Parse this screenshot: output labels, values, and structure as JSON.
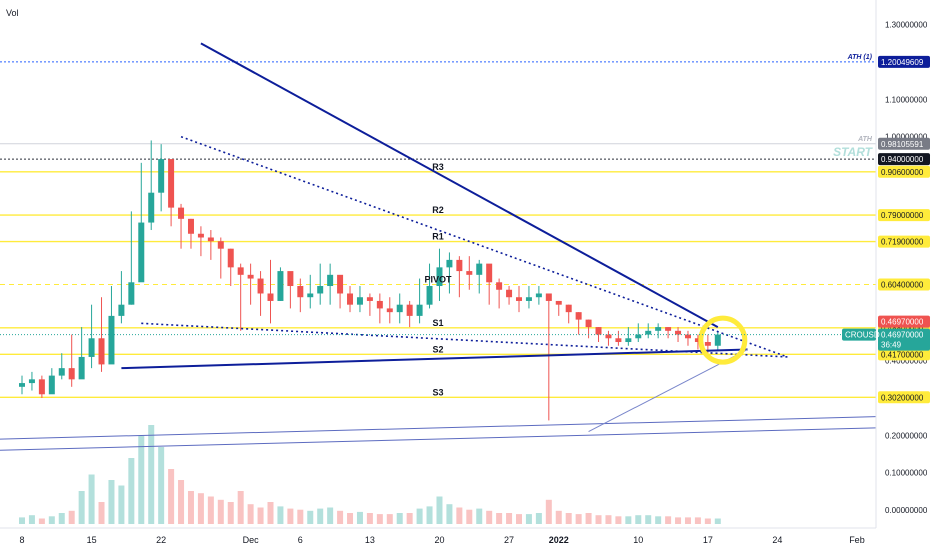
{
  "header": {
    "indicator_label": "Vol"
  },
  "price_axis": {
    "ticks": [
      {
        "value": 1.3,
        "label": "1.30000000"
      },
      {
        "value": 1.1,
        "label": "1.10000000"
      },
      {
        "value": 1.0,
        "label": "1.00000000"
      },
      {
        "value": 0.5,
        "label": "0.50000000"
      },
      {
        "value": 0.4,
        "label": "0.40000000"
      },
      {
        "value": 0.2,
        "label": "0.20000000"
      },
      {
        "value": 0.1,
        "label": "0.10000000"
      },
      {
        "value": 0.0,
        "label": "0.00000000"
      }
    ]
  },
  "time_axis": {
    "labels": [
      {
        "t": 0,
        "label": "8"
      },
      {
        "t": 7,
        "label": "15"
      },
      {
        "t": 14,
        "label": "22"
      },
      {
        "t": 23,
        "label": "Dec"
      },
      {
        "t": 28,
        "label": "6"
      },
      {
        "t": 35,
        "label": "13"
      },
      {
        "t": 42,
        "label": "20"
      },
      {
        "t": 49,
        "label": "27"
      },
      {
        "t": 54,
        "label": "2022"
      },
      {
        "t": 62,
        "label": "10"
      },
      {
        "t": 69,
        "label": "17"
      },
      {
        "t": 76,
        "label": "24"
      },
      {
        "t": 84,
        "label": "Feb"
      }
    ]
  },
  "levels": [
    {
      "id": "ath1",
      "value": 1.20049609,
      "price_label": "1.20049609",
      "name": "ATH (1)",
      "style": "dotted",
      "color": "#2962ff",
      "badge_color": "#0d1e9a"
    },
    {
      "id": "ath",
      "value": 0.98105591,
      "price_label": "0.98105591",
      "name": "ATH",
      "style": "solid",
      "color": "#d1d4dc",
      "badge_color": "#787b86"
    },
    {
      "id": "start",
      "value": 0.94,
      "price_label": "0.94000000",
      "name": "START",
      "style": "dotted",
      "color": "#2a2e39",
      "badge_color": "#131722"
    },
    {
      "id": "r3",
      "value": 0.906,
      "price_label": "0.90600000",
      "name": "R3",
      "style": "solid",
      "color": "#ffeb3b",
      "badge_color": "#ffeb3b"
    },
    {
      "id": "r2",
      "value": 0.79,
      "price_label": "0.79000000",
      "name": "R2",
      "style": "solid",
      "color": "#ffeb3b",
      "badge_color": "#ffeb3b"
    },
    {
      "id": "r1",
      "value": 0.719,
      "price_label": "0.71900000",
      "name": "R1",
      "style": "solid",
      "color": "#ffeb3b",
      "badge_color": "#ffeb3b"
    },
    {
      "id": "pivot",
      "value": 0.604,
      "price_label": "0.60400000",
      "name": "PIVOT",
      "style": "dashed",
      "color": "#ffeb3b",
      "badge_color": "#ffeb3b"
    },
    {
      "id": "s1",
      "value": 0.488,
      "price_label": "0.48800000",
      "name": "S1",
      "style": "solid",
      "color": "#ffeb3b",
      "badge_color": "#ffeb3b"
    },
    {
      "id": "s2",
      "value": 0.417,
      "price_label": "0.41700000",
      "name": "S2",
      "style": "solid",
      "color": "#ffeb3b",
      "badge_color": "#ffeb3b"
    },
    {
      "id": "s3",
      "value": 0.302,
      "price_label": "0.30200000",
      "name": "S3",
      "style": "solid",
      "color": "#ffeb3b",
      "badge_color": "#ffeb3b"
    }
  ],
  "last_price": {
    "symbol": "CROUSD",
    "price_label": "0.46970000",
    "price": 0.4697,
    "countdown": "36:49",
    "badge_color": "#26a69a",
    "alert_color": "#ef5350"
  },
  "colors": {
    "up": "#26a69a",
    "down": "#ef5350",
    "trend": "#0d1e9a",
    "highlight": "#ffeb3b"
  },
  "chart_data": {
    "type": "candlestick",
    "x_unit": "days since 8 Nov 2021",
    "close": [
      0.34,
      0.35,
      0.31,
      0.36,
      0.38,
      0.35,
      0.41,
      0.46,
      0.39,
      0.52,
      0.55,
      0.61,
      0.77,
      0.85,
      0.94,
      0.81,
      0.78,
      0.74,
      0.73,
      0.72,
      0.7,
      0.65,
      0.63,
      0.62,
      0.58,
      0.56,
      0.64,
      0.6,
      0.57,
      0.58,
      0.6,
      0.63,
      0.58,
      0.55,
      0.57,
      0.56,
      0.54,
      0.53,
      0.55,
      0.52,
      0.55,
      0.6,
      0.65,
      0.67,
      0.64,
      0.63,
      0.66,
      0.61,
      0.59,
      0.57,
      0.56,
      0.57,
      0.58,
      0.56,
      0.55,
      0.53,
      0.51,
      0.49,
      0.47,
      0.46,
      0.45,
      0.46,
      0.47,
      0.48,
      0.49,
      0.48,
      0.47,
      0.46,
      0.45,
      0.44,
      0.47
    ],
    "low": [
      0.31,
      0.32,
      0.3,
      0.32,
      0.35,
      0.33,
      0.37,
      0.38,
      0.37,
      0.45,
      0.5,
      0.55,
      0.68,
      0.75,
      0.8,
      0.76,
      0.7,
      0.7,
      0.68,
      0.67,
      0.62,
      0.6,
      0.48,
      0.55,
      0.52,
      0.5,
      0.56,
      0.54,
      0.53,
      0.54,
      0.55,
      0.55,
      0.54,
      0.53,
      0.53,
      0.52,
      0.5,
      0.5,
      0.5,
      0.49,
      0.5,
      0.54,
      0.56,
      0.58,
      0.57,
      0.59,
      0.58,
      0.55,
      0.54,
      0.55,
      0.53,
      0.54,
      0.55,
      0.24,
      0.52,
      0.5,
      0.47,
      0.46,
      0.45,
      0.44,
      0.44,
      0.44,
      0.45,
      0.46,
      0.46,
      0.46,
      0.45,
      0.44,
      0.43,
      0.42,
      0.43
    ],
    "high": [
      0.36,
      0.37,
      0.36,
      0.38,
      0.42,
      0.47,
      0.49,
      0.55,
      0.57,
      0.6,
      0.64,
      0.8,
      0.93,
      0.99,
      0.98,
      0.9,
      0.82,
      0.78,
      0.76,
      0.75,
      0.73,
      0.7,
      0.66,
      0.66,
      0.64,
      0.67,
      0.65,
      0.63,
      0.62,
      0.63,
      0.66,
      0.66,
      0.62,
      0.6,
      0.6,
      0.58,
      0.58,
      0.57,
      0.58,
      0.56,
      0.62,
      0.66,
      0.7,
      0.69,
      0.68,
      0.68,
      0.67,
      0.64,
      0.62,
      0.6,
      0.6,
      0.6,
      0.6,
      0.58,
      0.56,
      0.55,
      0.53,
      0.51,
      0.49,
      0.48,
      0.48,
      0.49,
      0.5,
      0.5,
      0.5,
      0.49,
      0.49,
      0.48,
      0.47,
      0.47,
      0.48
    ],
    "volume": [
      0.06,
      0.08,
      0.05,
      0.07,
      0.1,
      0.12,
      0.3,
      0.45,
      0.2,
      0.4,
      0.35,
      0.6,
      0.8,
      0.9,
      0.7,
      0.5,
      0.4,
      0.3,
      0.28,
      0.25,
      0.22,
      0.2,
      0.3,
      0.18,
      0.15,
      0.2,
      0.16,
      0.14,
      0.13,
      0.12,
      0.14,
      0.15,
      0.12,
      0.1,
      0.11,
      0.1,
      0.09,
      0.09,
      0.1,
      0.1,
      0.14,
      0.16,
      0.25,
      0.18,
      0.15,
      0.13,
      0.14,
      0.12,
      0.1,
      0.1,
      0.09,
      0.09,
      0.1,
      0.22,
      0.12,
      0.1,
      0.09,
      0.1,
      0.08,
      0.08,
      0.07,
      0.07,
      0.08,
      0.08,
      0.07,
      0.07,
      0.06,
      0.06,
      0.06,
      0.05,
      0.05
    ],
    "trendlines": [
      {
        "t0": 18,
        "v0": 1.25,
        "t1": 70,
        "v1": 0.49,
        "style": "solid"
      },
      {
        "t0": 16,
        "v0": 1.0,
        "t1": 77,
        "v1": 0.41,
        "style": "dotted"
      },
      {
        "t0": 12,
        "v0": 0.5,
        "t1": 77,
        "v1": 0.41,
        "style": "dotted"
      },
      {
        "t0": 10,
        "v0": 0.38,
        "t1": 73,
        "v1": 0.43,
        "style": "solid"
      },
      {
        "t0": 57,
        "v0": 0.21,
        "t1": 73,
        "v1": 0.43,
        "style": "thin"
      }
    ],
    "channel_lines": [
      {
        "t0": 0,
        "v0": 0.19,
        "t1": 84,
        "v1": 0.25
      },
      {
        "t0": 0,
        "v0": 0.16,
        "t1": 84,
        "v1": 0.22
      }
    ],
    "ylim": [
      0,
      1.3
    ]
  }
}
